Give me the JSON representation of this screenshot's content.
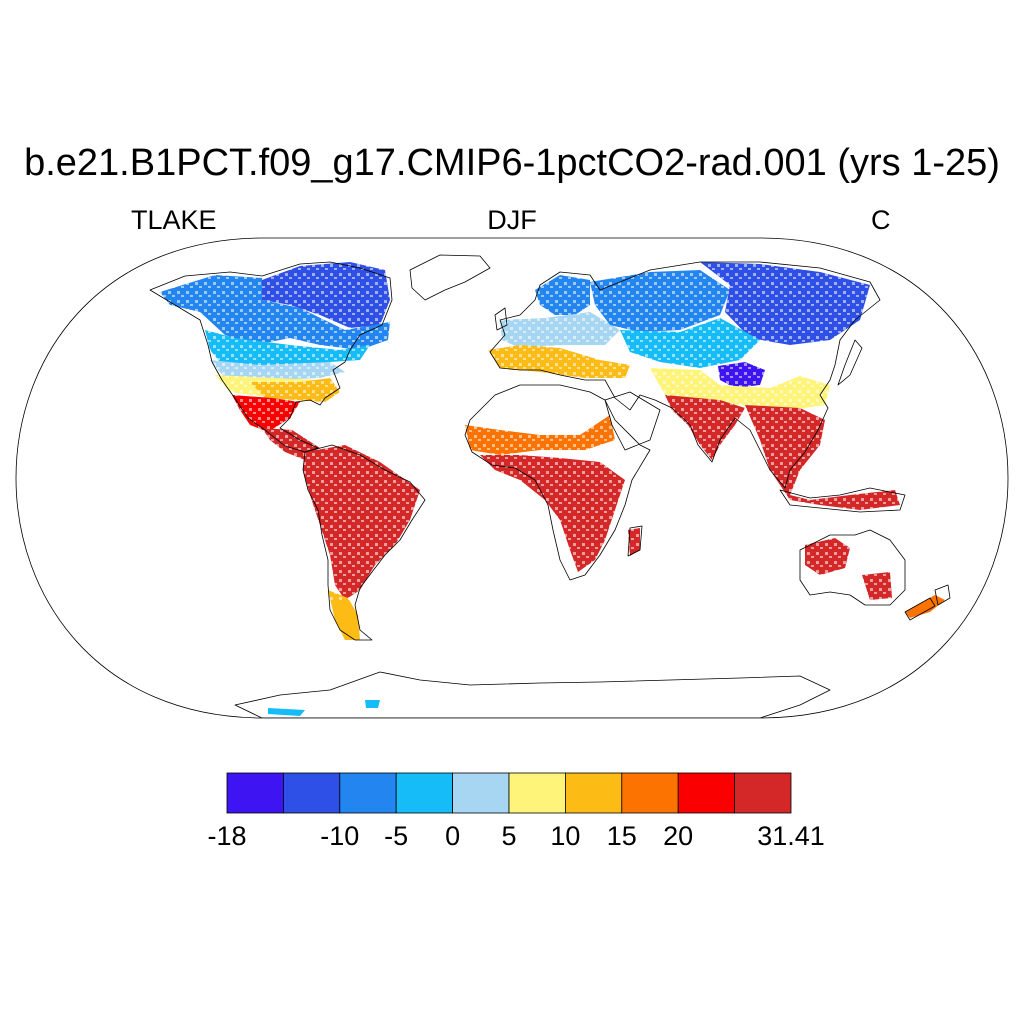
{
  "title": "b.e21.B1PCT.f09_g17.CMIP6-1pctCO2-rad.001 (yrs 1-25)",
  "subtitle_left": "TLAKE",
  "subtitle_center": "DJF",
  "subtitle_right": "C",
  "map": {
    "projection": "robinson",
    "land_outline_color": "#000000",
    "background": "#ffffff"
  },
  "colorbar": {
    "colors": [
      "#3e14f2",
      "#2e50e6",
      "#2386f0",
      "#15bcf8",
      "#a6d6f2",
      "#fff47a",
      "#fdbb16",
      "#fd7302",
      "#fa0000",
      "#d42728"
    ],
    "labels": [
      {
        "text": "-18",
        "boundary": 0
      },
      {
        "text": "-10",
        "boundary": 2
      },
      {
        "text": "-5",
        "boundary": 3
      },
      {
        "text": "0",
        "boundary": 4
      },
      {
        "text": "5",
        "boundary": 5
      },
      {
        "text": "10",
        "boundary": 6
      },
      {
        "text": "15",
        "boundary": 7
      },
      {
        "text": "20",
        "boundary": 8
      },
      {
        "text": "31.41",
        "boundary": 10
      }
    ]
  },
  "regions": [
    {
      "name": "canada-arctic",
      "color": "#2e50e6"
    },
    {
      "name": "north-america-north",
      "color": "#2386f0"
    },
    {
      "name": "north-america-mid",
      "color": "#15bcf8"
    },
    {
      "name": "us-central",
      "color": "#a6d6f2"
    },
    {
      "name": "us-south",
      "color": "#fff47a"
    },
    {
      "name": "us-southeast",
      "color": "#fdbb16"
    },
    {
      "name": "mexico",
      "color": "#fa0000"
    },
    {
      "name": "central-america",
      "color": "#d42728"
    },
    {
      "name": "south-america",
      "color": "#d42728"
    },
    {
      "name": "patagonia",
      "color": "#fdbb16"
    },
    {
      "name": "scandinavia",
      "color": "#2386f0"
    },
    {
      "name": "europe",
      "color": "#a6d6f2"
    },
    {
      "name": "mediterranean",
      "color": "#fdbb16"
    },
    {
      "name": "siberia-west",
      "color": "#2386f0"
    },
    {
      "name": "siberia-east",
      "color": "#2e50e6"
    },
    {
      "name": "central-asia",
      "color": "#15bcf8"
    },
    {
      "name": "mongolia",
      "color": "#3e14f2"
    },
    {
      "name": "china",
      "color": "#fff47a"
    },
    {
      "name": "india",
      "color": "#d42728"
    },
    {
      "name": "southeast-asia",
      "color": "#d42728"
    },
    {
      "name": "sahel",
      "color": "#fd7302"
    },
    {
      "name": "central-africa",
      "color": "#d42728"
    },
    {
      "name": "madagascar",
      "color": "#d42728"
    },
    {
      "name": "australia",
      "color": "#d42728"
    },
    {
      "name": "new-zealand",
      "color": "#fd7302"
    },
    {
      "name": "antarctic-coast",
      "color": "#15bcf8"
    }
  ]
}
